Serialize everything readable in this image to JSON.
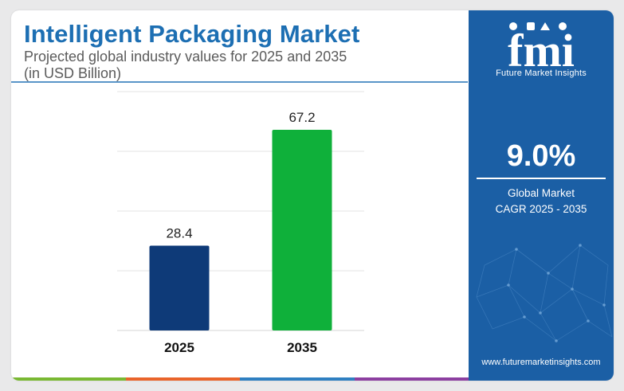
{
  "header": {
    "title": "Intelligent Packaging Market",
    "subtitle_line1": "Projected global industry values for 2025 and 2035",
    "subtitle_line2": "(in USD Billion)"
  },
  "chart_data": {
    "type": "bar",
    "categories": [
      "2025",
      "2035"
    ],
    "values": [
      28.4,
      67.2
    ],
    "value_labels": [
      "28.4",
      "67.2"
    ],
    "bar_colors": [
      "#0e3a78",
      "#0fb03a"
    ],
    "ylim": [
      0,
      80
    ],
    "grid": true,
    "xlabel": "",
    "ylabel": ""
  },
  "sidebar": {
    "logo_text": "fmi",
    "logo_subtext": "Future Market Insights",
    "cagr_value": "9.0%",
    "cagr_label_line1": "Global Market",
    "cagr_label_line2": "CAGR 2025 - 2035",
    "website": "www.futuremarketinsights.com"
  },
  "colors": {
    "title": "#1d6fb3",
    "panel": "#1b5fa5",
    "strip": [
      "#79b832",
      "#e9642b",
      "#2f7fc1",
      "#8c3fa0"
    ]
  }
}
